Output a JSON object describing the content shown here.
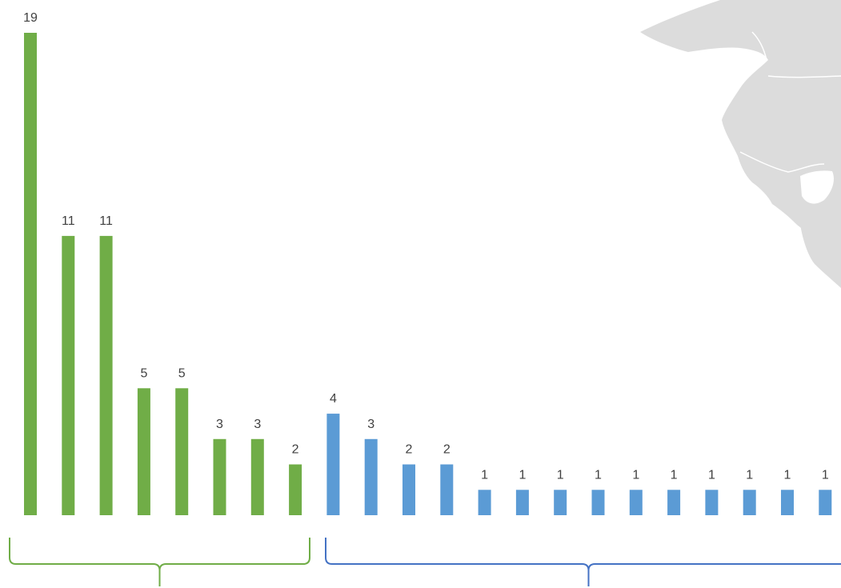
{
  "chart_data": {
    "type": "bar",
    "title": "",
    "xlabel": "",
    "ylabel": "",
    "ylim": [
      0,
      19
    ],
    "grid": false,
    "legend": "none",
    "values": [
      19,
      11,
      11,
      5,
      5,
      3,
      3,
      2,
      4,
      3,
      2,
      2,
      1,
      1,
      1,
      1,
      1,
      1,
      1,
      1,
      1,
      1
    ],
    "groups": [
      {
        "color": "#70ad47",
        "count": 8
      },
      {
        "color": "#5b9bd5",
        "count": 14
      }
    ],
    "bracket_colors": [
      "#70ad47",
      "#4472c4"
    ]
  }
}
